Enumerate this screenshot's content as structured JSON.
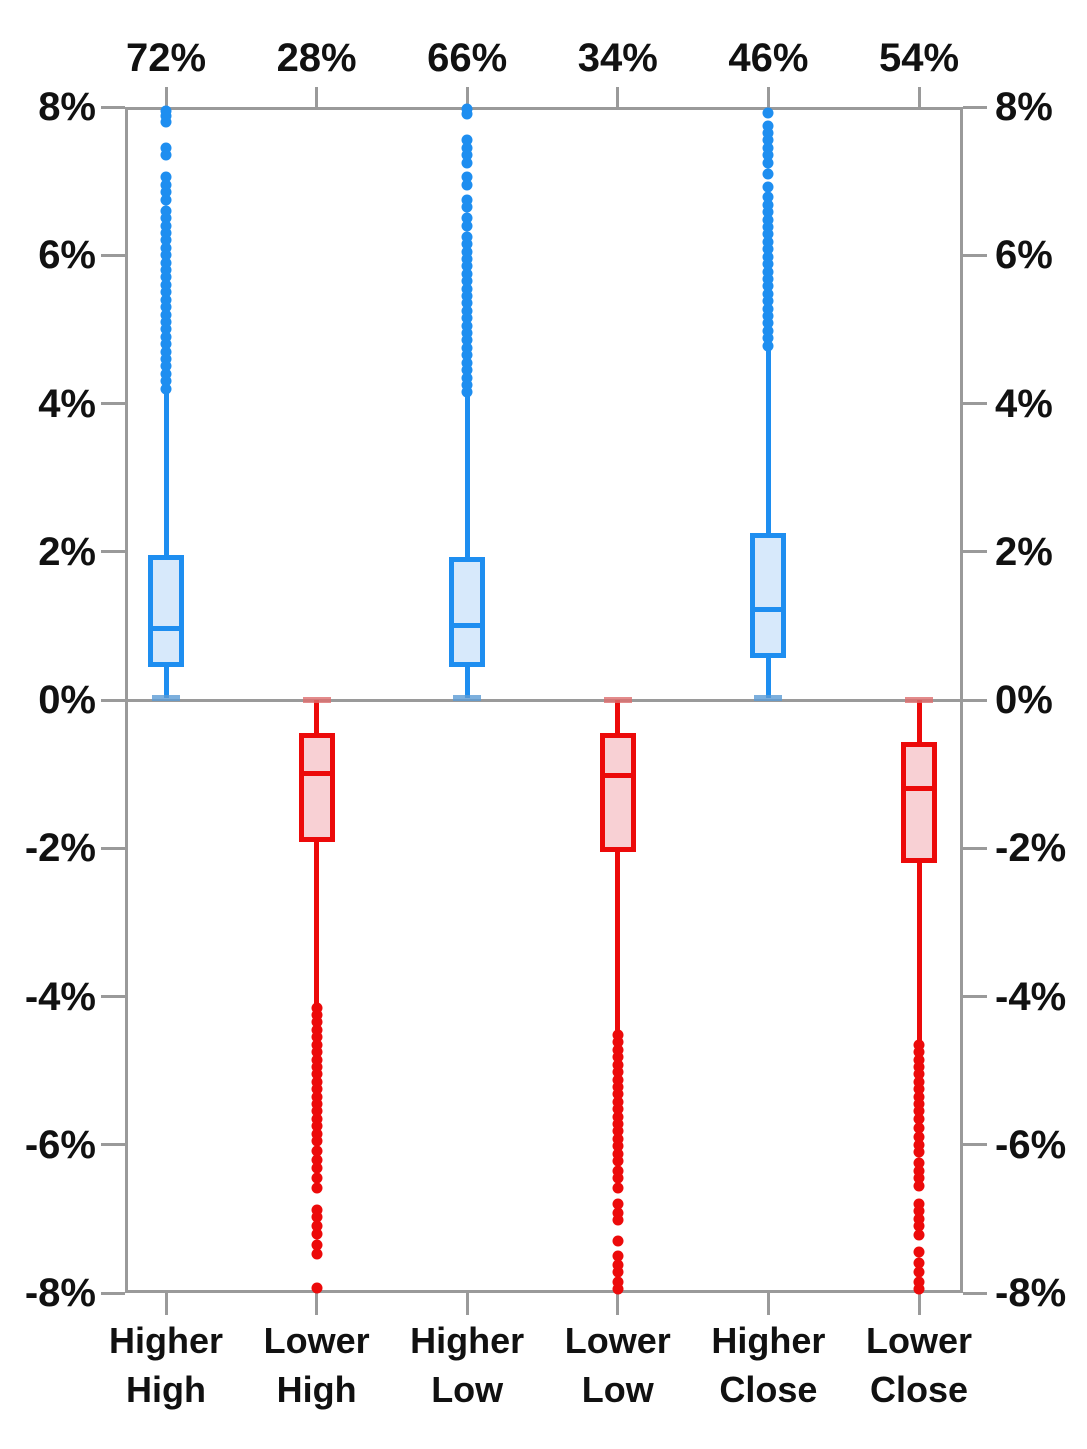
{
  "chart_data": {
    "type": "box",
    "title": "",
    "xlabel": "",
    "ylabel": "",
    "y_axis": {
      "min": -8,
      "max": 8,
      "tick_values": [
        8,
        6,
        4,
        2,
        0,
        -2,
        -4,
        -6,
        -8
      ],
      "tick_labels": [
        "8%",
        "6%",
        "4%",
        "2%",
        "0%",
        "-2%",
        "-4%",
        "-6%",
        "-8%"
      ],
      "label_sides": "both",
      "grid": "zero-line-only"
    },
    "colors": {
      "blue_line": "#1E8EF0",
      "blue_fill": "#D7E9FB",
      "blue_cap": "#5B9BD5",
      "red_line": "#EC0A0A",
      "red_fill": "#F8D0D4",
      "red_cap": "#DD6E6E",
      "axis_gray": "#9a9a9a",
      "text": "#111111"
    },
    "categories": [
      {
        "label_lines": [
          "Higher",
          "High"
        ],
        "frequency_label": "72%",
        "series_color": "blue",
        "box": {
          "whisker_low": 0.03,
          "q1": 0.45,
          "median": 0.97,
          "q3": 1.95,
          "whisker_high": 4.18
        },
        "outliers": [
          4.2,
          4.3,
          4.4,
          4.5,
          4.6,
          4.7,
          4.8,
          4.9,
          5.0,
          5.1,
          5.2,
          5.3,
          5.4,
          5.5,
          5.6,
          5.7,
          5.8,
          5.9,
          6.0,
          6.1,
          6.2,
          6.3,
          6.4,
          6.5,
          6.6,
          6.75,
          6.85,
          6.95,
          7.05,
          7.35,
          7.45,
          7.8,
          7.88,
          7.95
        ]
      },
      {
        "label_lines": [
          "Lower",
          "High"
        ],
        "frequency_label": "28%",
        "series_color": "red",
        "box": {
          "whisker_low": -4.1,
          "q1": -1.92,
          "median": -0.99,
          "q3": -0.44,
          "whisker_high": 0.0
        },
        "outliers": [
          -4.15,
          -4.25,
          -4.35,
          -4.45,
          -4.55,
          -4.65,
          -4.75,
          -4.85,
          -4.95,
          -5.05,
          -5.15,
          -5.25,
          -5.35,
          -5.45,
          -5.55,
          -5.65,
          -5.75,
          -5.85,
          -5.95,
          -6.08,
          -6.2,
          -6.32,
          -6.45,
          -6.58,
          -6.88,
          -6.98,
          -7.1,
          -7.2,
          -7.35,
          -7.48,
          -7.93
        ]
      },
      {
        "label_lines": [
          "Higher",
          "Low"
        ],
        "frequency_label": "66%",
        "series_color": "blue",
        "box": {
          "whisker_low": 0.03,
          "q1": 0.45,
          "median": 1.0,
          "q3": 1.93,
          "whisker_high": 4.15
        },
        "outliers": [
          4.15,
          4.25,
          4.35,
          4.45,
          4.55,
          4.65,
          4.75,
          4.85,
          4.95,
          5.05,
          5.15,
          5.25,
          5.35,
          5.45,
          5.55,
          5.65,
          5.75,
          5.85,
          5.95,
          6.05,
          6.15,
          6.25,
          6.4,
          6.5,
          6.65,
          6.75,
          6.95,
          7.05,
          7.25,
          7.35,
          7.45,
          7.55,
          7.9,
          7.97
        ]
      },
      {
        "label_lines": [
          "Lower",
          "Low"
        ],
        "frequency_label": "34%",
        "series_color": "red",
        "box": {
          "whisker_low": -4.48,
          "q1": -2.05,
          "median": -1.02,
          "q3": -0.45,
          "whisker_high": 0.0
        },
        "outliers": [
          -4.52,
          -4.62,
          -4.72,
          -4.82,
          -4.92,
          -5.02,
          -5.12,
          -5.22,
          -5.32,
          -5.42,
          -5.52,
          -5.62,
          -5.72,
          -5.82,
          -5.92,
          -6.02,
          -6.12,
          -6.22,
          -6.35,
          -6.45,
          -6.58,
          -6.8,
          -6.92,
          -7.02,
          -7.3,
          -7.5,
          -7.62,
          -7.72,
          -7.85,
          -7.95
        ]
      },
      {
        "label_lines": [
          "Higher",
          "Close"
        ],
        "frequency_label": "46%",
        "series_color": "blue",
        "box": {
          "whisker_low": 0.03,
          "q1": 0.56,
          "median": 1.22,
          "q3": 2.25,
          "whisker_high": 4.75
        },
        "outliers": [
          4.78,
          4.88,
          4.98,
          5.08,
          5.18,
          5.28,
          5.38,
          5.48,
          5.58,
          5.68,
          5.78,
          5.88,
          5.98,
          6.08,
          6.18,
          6.28,
          6.38,
          6.48,
          6.58,
          6.68,
          6.78,
          6.92,
          7.1,
          7.25,
          7.35,
          7.45,
          7.55,
          7.65,
          7.75,
          7.92
        ]
      },
      {
        "label_lines": [
          "Lower",
          "Close"
        ],
        "frequency_label": "54%",
        "series_color": "red",
        "box": {
          "whisker_low": -4.62,
          "q1": -2.2,
          "median": -1.2,
          "q3": -0.56,
          "whisker_high": 0.0
        },
        "outliers": [
          -4.65,
          -4.75,
          -4.85,
          -4.95,
          -5.05,
          -5.15,
          -5.25,
          -5.35,
          -5.45,
          -5.55,
          -5.65,
          -5.78,
          -5.9,
          -6.0,
          -6.1,
          -6.25,
          -6.35,
          -6.45,
          -6.55,
          -6.8,
          -6.9,
          -7.0,
          -7.1,
          -7.22,
          -7.45,
          -7.6,
          -7.72,
          -7.85,
          -7.95
        ]
      }
    ]
  }
}
